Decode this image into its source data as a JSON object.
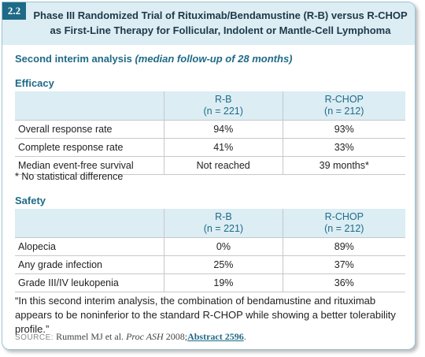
{
  "header": {
    "number": "2.2",
    "title": [
      "Phase III Randomized Trial of Rituximab/Bendamustine (R-B) versus R-CHOP",
      "as First-Line Therapy for Follicular, Indolent or Mantle-Cell Lymphoma"
    ]
  },
  "subtitle": {
    "text": "Second interim analysis",
    "note": "(median follow-up of 28 months)"
  },
  "efficacy": {
    "heading": "Efficacy",
    "columns": [
      [
        "R-B",
        "(n = 221)"
      ],
      [
        "R-CHOP",
        "(n = 212)"
      ]
    ],
    "rows": [
      [
        "Overall response rate",
        "94%",
        "93%"
      ],
      [
        "Complete response rate",
        "41%",
        "33%"
      ],
      [
        "Median event-free survival",
        "Not reached",
        "39 months*"
      ]
    ],
    "footnote": "* No statistical difference"
  },
  "safety": {
    "heading": "Safety",
    "columns": [
      [
        "R-B",
        "(n = 221)"
      ],
      [
        "R-CHOP",
        "(n = 212)"
      ]
    ],
    "rows": [
      [
        "Alopecia",
        "0%",
        "89%"
      ],
      [
        "Any grade infection",
        "25%",
        "37%"
      ],
      [
        "Grade III/IV leukopenia",
        "19%",
        "36%"
      ]
    ]
  },
  "quote": "“In this second interim analysis, the combination of bendamustine and rituximab appears to be noninferior to the standard R-CHOP while showing a better tolerability profile.”",
  "source": {
    "label": "SOURCE:",
    "authors": "Rummel MJ et al.",
    "journal": "Proc ASH",
    "year": "2008;",
    "link": "Abstract 2596",
    "end": "."
  }
}
